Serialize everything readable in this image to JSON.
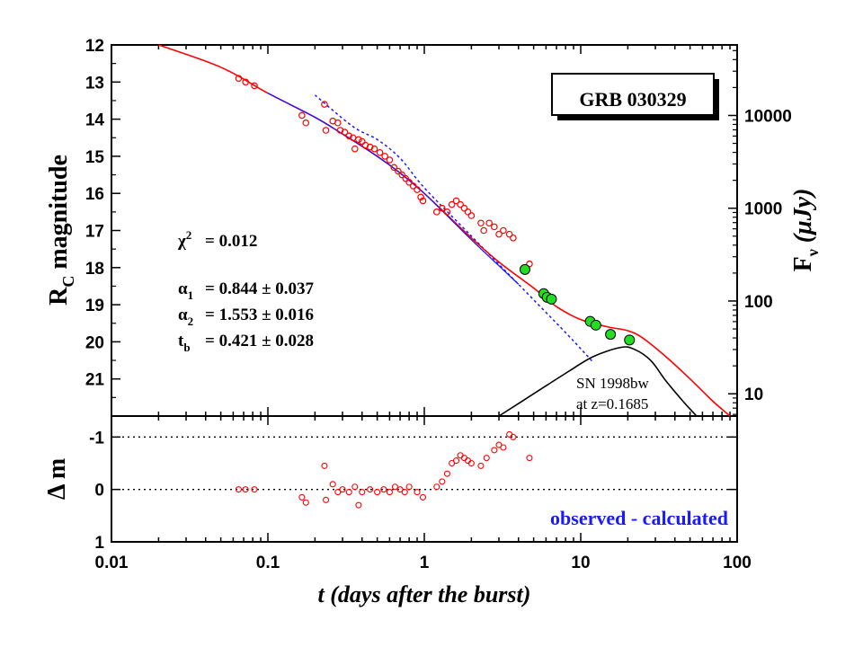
{
  "chart_data": [
    {
      "type": "scatter",
      "panel": "light curve (top)",
      "title": "GRB 030329",
      "xlabel": "t (days after the burst)",
      "ylabel_left": "R",
      "ylabel_left_subscript": "C",
      "ylabel_left_suffix": " magnitude",
      "ylabel_right": "F",
      "ylabel_right_subscript": "ν",
      "ylabel_right_suffix": " (μJy)",
      "x_scale": "log",
      "xlim": [
        0.01,
        100
      ],
      "ylim": [
        22,
        12
      ],
      "y_inverted": true,
      "x_ticks": [
        "0.01",
        "0.1",
        "1",
        "10",
        "100"
      ],
      "y_ticks": [
        "12",
        "13",
        "14",
        "15",
        "16",
        "17",
        "18",
        "19",
        "20",
        "21"
      ],
      "y_right_ticks": [
        "10",
        "100",
        "1000",
        "10000"
      ],
      "grid": false,
      "stats": [
        {
          "label": "χ²",
          "label_base": "χ",
          "label_sup": "2",
          "value": "= 0.012"
        },
        {
          "label": "α1",
          "label_base": "α",
          "label_sub": "1",
          "value": "= 0.844 ± 0.037"
        },
        {
          "label": "α2",
          "label_base": "α",
          "label_sub": "2",
          "value": "= 1.553 ± 0.016"
        },
        {
          "label": "tb",
          "label_base": "t",
          "label_sub": "b",
          "value": "= 0.421 ± 0.028"
        }
      ],
      "annotation_sn_line1": "SN 1998bw",
      "annotation_sn_line2": "at z=0.1685",
      "colors": {
        "observed": "#ff0000",
        "model_total": "#ff0000",
        "afterglow_model": "#1a1aff",
        "broken_power_law": "#1a1aff",
        "supernova": "#000000",
        "late_points_fill": "#22dd22"
      },
      "series": [
        {
          "kind": "points-open",
          "values": [
            [
              0.065,
              12.9
            ],
            [
              0.072,
              13.0
            ],
            [
              0.082,
              13.1
            ],
            [
              0.165,
              13.9
            ],
            [
              0.175,
              14.1
            ],
            [
              0.23,
              13.6
            ],
            [
              0.235,
              14.3
            ],
            [
              0.26,
              14.05
            ],
            [
              0.28,
              14.1
            ],
            [
              0.29,
              14.3
            ],
            [
              0.31,
              14.35
            ],
            [
              0.33,
              14.45
            ],
            [
              0.35,
              14.5
            ],
            [
              0.36,
              14.8
            ],
            [
              0.38,
              14.55
            ],
            [
              0.4,
              14.6
            ],
            [
              0.42,
              14.7
            ],
            [
              0.45,
              14.75
            ],
            [
              0.48,
              14.8
            ],
            [
              0.52,
              14.9
            ],
            [
              0.56,
              15.0
            ],
            [
              0.6,
              15.1
            ],
            [
              0.64,
              15.3
            ],
            [
              0.68,
              15.4
            ],
            [
              0.72,
              15.5
            ],
            [
              0.76,
              15.6
            ],
            [
              0.8,
              15.7
            ],
            [
              0.85,
              15.8
            ],
            [
              0.9,
              15.9
            ],
            [
              0.95,
              16.1
            ],
            [
              0.98,
              16.2
            ],
            [
              1.2,
              16.5
            ],
            [
              1.3,
              16.4
            ],
            [
              1.4,
              16.5
            ],
            [
              1.5,
              16.3
            ],
            [
              1.6,
              16.2
            ],
            [
              1.7,
              16.3
            ],
            [
              1.8,
              16.4
            ],
            [
              1.9,
              16.5
            ],
            [
              2.0,
              16.6
            ],
            [
              2.3,
              16.8
            ],
            [
              2.4,
              17.0
            ],
            [
              2.6,
              16.8
            ],
            [
              2.8,
              16.9
            ],
            [
              3.0,
              17.1
            ],
            [
              3.2,
              17.0
            ],
            [
              3.5,
              17.1
            ],
            [
              3.7,
              17.2
            ],
            [
              4.7,
              17.9
            ]
          ]
        },
        {
          "kind": "points-filled",
          "values": [
            [
              4.4,
              18.05
            ],
            [
              5.8,
              18.7
            ],
            [
              6.1,
              18.8
            ],
            [
              6.5,
              18.85
            ],
            [
              11.5,
              19.45
            ],
            [
              12.5,
              19.55
            ],
            [
              15.5,
              19.8
            ],
            [
              20.5,
              19.95
            ]
          ]
        },
        {
          "kind": "model-total",
          "values": [
            [
              0.02,
              11.8
            ],
            [
              0.05,
              12.6
            ],
            [
              0.1,
              13.3
            ],
            [
              0.2,
              13.95
            ],
            [
              0.3,
              14.4
            ],
            [
              0.5,
              15.0
            ],
            [
              0.7,
              15.45
            ],
            [
              1.0,
              16.0
            ],
            [
              2.0,
              17.2
            ],
            [
              3.0,
              17.85
            ],
            [
              5.0,
              18.55
            ],
            [
              7.0,
              19.05
            ],
            [
              10.0,
              19.4
            ],
            [
              15.0,
              19.6
            ],
            [
              20.0,
              19.7
            ],
            [
              25.0,
              19.9
            ],
            [
              35.0,
              20.4
            ],
            [
              50.0,
              21.0
            ],
            [
              70.0,
              21.6
            ],
            [
              90.0,
              22.0
            ]
          ]
        },
        {
          "kind": "afterglow-model",
          "values": [
            [
              0.1,
              13.3
            ],
            [
              0.2,
              13.95
            ],
            [
              0.3,
              14.4
            ],
            [
              0.5,
              15.0
            ],
            [
              0.7,
              15.45
            ],
            [
              1.0,
              16.0
            ],
            [
              2.0,
              17.25
            ],
            [
              3.0,
              17.95
            ],
            [
              4.0,
              18.45
            ]
          ]
        },
        {
          "kind": "broken-power-law",
          "values": [
            [
              0.2,
              13.35
            ],
            [
              0.35,
              14.2
            ],
            [
              0.5,
              14.55
            ],
            [
              0.7,
              15.05
            ],
            [
              1.0,
              15.85
            ],
            [
              2.0,
              17.15
            ],
            [
              4.0,
              18.45
            ],
            [
              8.0,
              19.75
            ],
            [
              12.0,
              20.55
            ]
          ]
        },
        {
          "kind": "supernova",
          "values": [
            [
              3.0,
              22.0
            ],
            [
              5.0,
              21.4
            ],
            [
              8.0,
              20.85
            ],
            [
              12.0,
              20.4
            ],
            [
              18.0,
              20.15
            ],
            [
              22.0,
              20.2
            ],
            [
              28.0,
              20.5
            ],
            [
              35.0,
              21.05
            ],
            [
              45.0,
              21.6
            ],
            [
              55.0,
              22.0
            ]
          ]
        }
      ]
    },
    {
      "type": "scatter",
      "panel": "residuals (bottom)",
      "ylabel": "Δ m",
      "x_scale": "log",
      "xlim": [
        0.01,
        100
      ],
      "ylim": [
        1,
        -1.4
      ],
      "y_inverted": true,
      "y_ticks": [
        "-1",
        "0",
        "1"
      ],
      "reference_lines": [
        0,
        -1
      ],
      "annotation": "observed - calculated",
      "values": [
        [
          0.065,
          0.0
        ],
        [
          0.072,
          0.0
        ],
        [
          0.082,
          0.0
        ],
        [
          0.165,
          0.15
        ],
        [
          0.175,
          0.25
        ],
        [
          0.23,
          -0.45
        ],
        [
          0.235,
          0.2
        ],
        [
          0.26,
          -0.1
        ],
        [
          0.28,
          0.05
        ],
        [
          0.3,
          0.0
        ],
        [
          0.33,
          0.05
        ],
        [
          0.36,
          -0.05
        ],
        [
          0.38,
          0.3
        ],
        [
          0.4,
          0.05
        ],
        [
          0.45,
          0.0
        ],
        [
          0.5,
          0.05
        ],
        [
          0.55,
          0.0
        ],
        [
          0.6,
          0.05
        ],
        [
          0.65,
          -0.05
        ],
        [
          0.7,
          0.0
        ],
        [
          0.75,
          0.05
        ],
        [
          0.8,
          -0.05
        ],
        [
          0.9,
          0.05
        ],
        [
          0.98,
          0.15
        ],
        [
          1.2,
          -0.05
        ],
        [
          1.3,
          -0.15
        ],
        [
          1.4,
          -0.3
        ],
        [
          1.5,
          -0.5
        ],
        [
          1.6,
          -0.55
        ],
        [
          1.7,
          -0.65
        ],
        [
          1.8,
          -0.6
        ],
        [
          1.9,
          -0.55
        ],
        [
          2.0,
          -0.5
        ],
        [
          2.3,
          -0.45
        ],
        [
          2.5,
          -0.6
        ],
        [
          2.8,
          -0.75
        ],
        [
          3.0,
          -0.85
        ],
        [
          3.2,
          -0.8
        ],
        [
          3.5,
          -1.05
        ],
        [
          3.7,
          -1.0
        ],
        [
          4.7,
          -0.6
        ]
      ]
    }
  ]
}
